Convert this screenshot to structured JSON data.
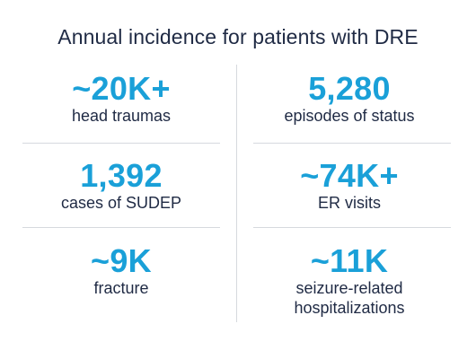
{
  "title": "Annual incidence for patients with DRE",
  "stats": [
    {
      "value": "~20K+",
      "label": "head traumas"
    },
    {
      "value": "5,280",
      "label": "episodes of status"
    },
    {
      "value": "1,392",
      "label": "cases of SUDEP"
    },
    {
      "value": "~74K+",
      "label": "ER visits"
    },
    {
      "value": "~9K",
      "label": "fracture"
    },
    {
      "value": "~11K",
      "label": "seizure-related hospitalizations"
    }
  ],
  "colors": {
    "accent": "#1aa0d8",
    "text": "#1f2a44",
    "divider": "#d6d9de"
  }
}
